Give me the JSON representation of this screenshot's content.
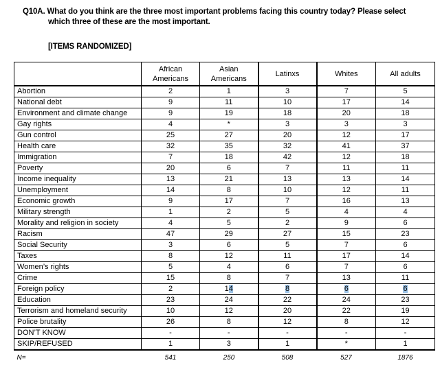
{
  "question": {
    "number": "Q10A.",
    "text": "What do you think are the three most important problems facing this country today? Please select which three of these are the most important.",
    "note": "[ITEMS RANDOMIZED]"
  },
  "table": {
    "columns": [
      "African Americans",
      "Asian Americans",
      "Latinxs",
      "Whites",
      "All adults"
    ],
    "rows": [
      {
        "label": "Abortion",
        "values": [
          "2",
          "1",
          "3",
          "7",
          "5"
        ]
      },
      {
        "label": "National debt",
        "values": [
          "9",
          "11",
          "10",
          "17",
          "14"
        ]
      },
      {
        "label": "Environment and climate change",
        "values": [
          "9",
          "19",
          "18",
          "20",
          "18"
        ]
      },
      {
        "label": "Gay rights",
        "values": [
          "4",
          "*",
          "3",
          "3",
          "3"
        ]
      },
      {
        "label": "Gun control",
        "values": [
          "25",
          "27",
          "20",
          "12",
          "17"
        ]
      },
      {
        "label": "Health care",
        "values": [
          "32",
          "35",
          "32",
          "41",
          "37"
        ]
      },
      {
        "label": "Immigration",
        "values": [
          "7",
          "18",
          "42",
          "12",
          "18"
        ]
      },
      {
        "label": "Poverty",
        "values": [
          "20",
          "6",
          "7",
          "11",
          "11"
        ]
      },
      {
        "label": "Income inequality",
        "values": [
          "13",
          "21",
          "13",
          "13",
          "14"
        ]
      },
      {
        "label": "Unemployment",
        "values": [
          "14",
          "8",
          "10",
          "12",
          "11"
        ]
      },
      {
        "label": "Economic growth",
        "values": [
          "9",
          "17",
          "7",
          "16",
          "13"
        ]
      },
      {
        "label": "Military strength",
        "values": [
          "1",
          "2",
          "5",
          "4",
          "4"
        ]
      },
      {
        "label": "Morality and religion in society",
        "values": [
          "4",
          "5",
          "2",
          "9",
          "6"
        ]
      },
      {
        "label": "Racism",
        "values": [
          "47",
          "29",
          "27",
          "15",
          "23"
        ]
      },
      {
        "label": "Social Security",
        "values": [
          "3",
          "6",
          "5",
          "7",
          "6"
        ]
      },
      {
        "label": "Taxes",
        "values": [
          "8",
          "12",
          "11",
          "17",
          "14"
        ]
      },
      {
        "label": "Women’s rights",
        "values": [
          "5",
          "4",
          "6",
          "7",
          "6"
        ]
      },
      {
        "label": "Crime",
        "values": [
          "15",
          "8",
          "7",
          "13",
          "11"
        ]
      },
      {
        "label": "Foreign policy",
        "values": [
          "2",
          "14",
          "8",
          "6",
          "6"
        ],
        "highlights": [
          "",
          "4",
          "8",
          "6",
          "6"
        ]
      },
      {
        "label": "Education",
        "values": [
          "23",
          "24",
          "22",
          "24",
          "23"
        ]
      },
      {
        "label": "Terrorism and homeland security",
        "values": [
          "10",
          "12",
          "20",
          "22",
          "19"
        ]
      },
      {
        "label": "Police brutality",
        "values": [
          "26",
          "8",
          "12",
          "8",
          "12"
        ]
      },
      {
        "label": "DON’T KNOW",
        "values": [
          "-",
          "-",
          "-",
          "-",
          "-"
        ]
      },
      {
        "label": "SKIP/REFUSED",
        "values": [
          "1",
          "3",
          "1",
          "*",
          "1"
        ]
      }
    ],
    "footer": {
      "label": "N=",
      "values": [
        "541",
        "250",
        "508",
        "527",
        "1876"
      ]
    }
  },
  "colors": {
    "selection_highlight": "#9dc3e6",
    "border": "#000000",
    "text": "#000000",
    "background": "#ffffff"
  }
}
